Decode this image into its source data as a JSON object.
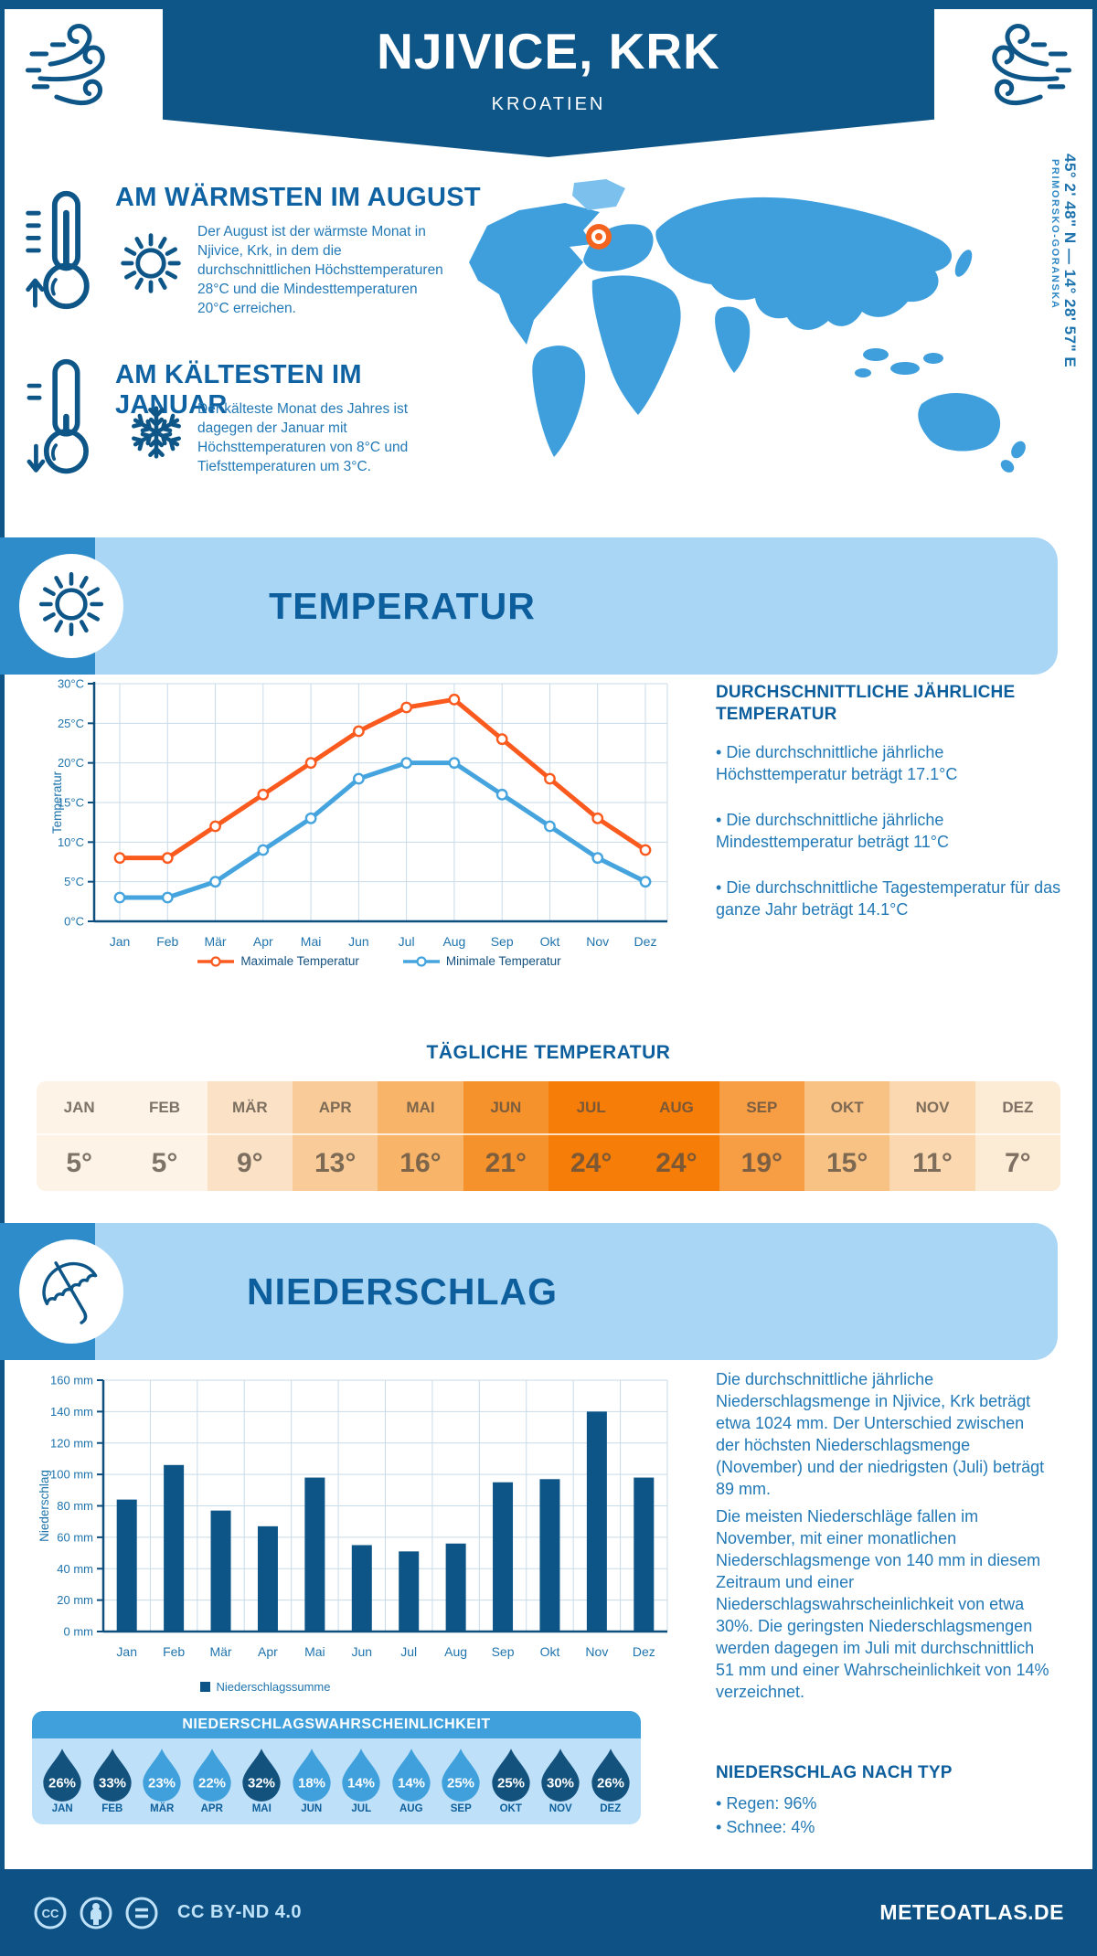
{
  "header": {
    "title": "NJIVICE, KRK",
    "subtitle": "KROATIEN"
  },
  "highlights": {
    "warmest": {
      "heading": "AM WÄRMSTEN IM AUGUST",
      "text": "Der August ist der wärmste Monat in Njivice, Krk, in dem die durchschnittlichen Höchsttemperaturen 28°C und die Mindesttemperaturen 20°C erreichen."
    },
    "coldest": {
      "heading": "AM KÄLTESTEN IM JANUAR",
      "text": "Der kälteste Monat des Jahres ist dagegen der Januar mit Höchsttemperaturen von 8°C und Tiefsttemperaturen um 3°C."
    }
  },
  "location": {
    "coordinates": "45° 2' 48\" N — 14° 28' 57\" E",
    "region": "PRIMORSKO-GORANSKA"
  },
  "temperature": {
    "band_title": "TEMPERATUR",
    "annual_heading": "DURCHSCHNITTLICHE JÄHRLICHE TEMPERATUR",
    "annual_bullets": [
      "Die durchschnittliche jährliche Höchsttemperatur beträgt 17.1°C",
      "Die durchschnittliche jährliche Mindesttemperatur beträgt 11°C",
      "Die durchschnittliche Tagestemperatur für das ganze Jahr beträgt 14.1°C"
    ],
    "daily_title": "TÄGLICHE TEMPERATUR",
    "daily": {
      "months": [
        "JAN",
        "FEB",
        "MÄR",
        "APR",
        "MAI",
        "JUN",
        "JUL",
        "AUG",
        "SEP",
        "OKT",
        "NOV",
        "DEZ"
      ],
      "values": [
        "5°",
        "5°",
        "9°",
        "13°",
        "16°",
        "21°",
        "24°",
        "24°",
        "19°",
        "15°",
        "11°",
        "7°"
      ],
      "cell_colors": [
        "#FDF3E7",
        "#FDF3E7",
        "#FBE2C6",
        "#F9CB98",
        "#F8B569",
        "#F6922B",
        "#F57D08",
        "#F57D08",
        "#F79D43",
        "#F9C285",
        "#FBD8AF",
        "#FCEBD5"
      ]
    }
  },
  "precipitation": {
    "band_title": "NIEDERSCHLAG",
    "paragraphs": [
      "Die durchschnittliche jährliche Niederschlagsmenge in Njivice, Krk beträgt etwa 1024 mm. Der Unterschied zwischen der höchsten Niederschlagsmenge (November) und der niedrigsten (Juli) beträgt 89 mm.",
      "Die meisten Niederschläge fallen im November, mit einer monatlichen Niederschlagsmenge von 140 mm in diesem Zeitraum und einer Niederschlagswahrscheinlichkeit von etwa 30%. Die geringsten Niederschlagsmengen werden dagegen im Juli mit durchschnittlich 51 mm und einer Wahrscheinlichkeit von 14% verzeichnet."
    ],
    "legend": "Niederschlagssumme",
    "probability": {
      "title": "NIEDERSCHLAGSWAHRSCHEINLICHKEIT",
      "months": [
        "JAN",
        "FEB",
        "MÄR",
        "APR",
        "MAI",
        "JUN",
        "JUL",
        "AUG",
        "SEP",
        "OKT",
        "NOV",
        "DEZ"
      ],
      "values": [
        "26%",
        "33%",
        "23%",
        "22%",
        "32%",
        "18%",
        "14%",
        "14%",
        "25%",
        "25%",
        "30%",
        "26%"
      ],
      "dark": [
        true,
        true,
        false,
        false,
        true,
        false,
        false,
        false,
        false,
        true,
        true,
        true
      ]
    },
    "type_heading": "NIEDERSCHLAG NACH TYP",
    "type_items": [
      "Regen: 96%",
      "Schnee: 4%"
    ]
  },
  "footer": {
    "license": "CC BY-ND 4.0",
    "site": "METEOATLAS.DE"
  },
  "colors": {
    "primary_dark": "#0F5688",
    "accent_blue": "#3FA0DC",
    "light_band": "#A9D6F5",
    "max_line": "#FA5A1E",
    "min_line": "#45A4DE",
    "bar": "#0D5586",
    "drop_dark": "#14527E",
    "drop_light": "#3FA0DC",
    "map": "#3F9FDD",
    "marker": "#F4641E"
  },
  "chart_data": [
    {
      "type": "line",
      "categories": [
        "Jan",
        "Feb",
        "Mär",
        "Apr",
        "Mai",
        "Jun",
        "Jul",
        "Aug",
        "Sep",
        "Okt",
        "Nov",
        "Dez"
      ],
      "series": [
        {
          "name": "Maximale Temperatur",
          "color": "#FA5A1E",
          "values": [
            8,
            8,
            12,
            16,
            20,
            24,
            27,
            28,
            23,
            18,
            13,
            9
          ]
        },
        {
          "name": "Minimale Temperatur",
          "color": "#45A4DE",
          "values": [
            3,
            3,
            5,
            9,
            13,
            18,
            20,
            20,
            16,
            12,
            8,
            5
          ]
        }
      ],
      "title": "",
      "xlabel": "",
      "ylabel": "Temperatur",
      "ylim": [
        0,
        30
      ],
      "ytick_step": 5,
      "ytick_suffix": "°C",
      "grid": true,
      "legend_position": "bottom"
    },
    {
      "type": "bar",
      "categories": [
        "Jan",
        "Feb",
        "Mär",
        "Apr",
        "Mai",
        "Jun",
        "Jul",
        "Aug",
        "Sep",
        "Okt",
        "Nov",
        "Dez"
      ],
      "values": [
        84,
        106,
        77,
        67,
        98,
        55,
        51,
        56,
        95,
        97,
        140,
        98
      ],
      "title": "",
      "xlabel": "",
      "ylabel": "Niederschlag",
      "ylim": [
        0,
        160
      ],
      "ytick_step": 20,
      "ytick_suffix": " mm",
      "grid": true,
      "legend": "Niederschlagssumme",
      "color": "#0D5586"
    }
  ]
}
